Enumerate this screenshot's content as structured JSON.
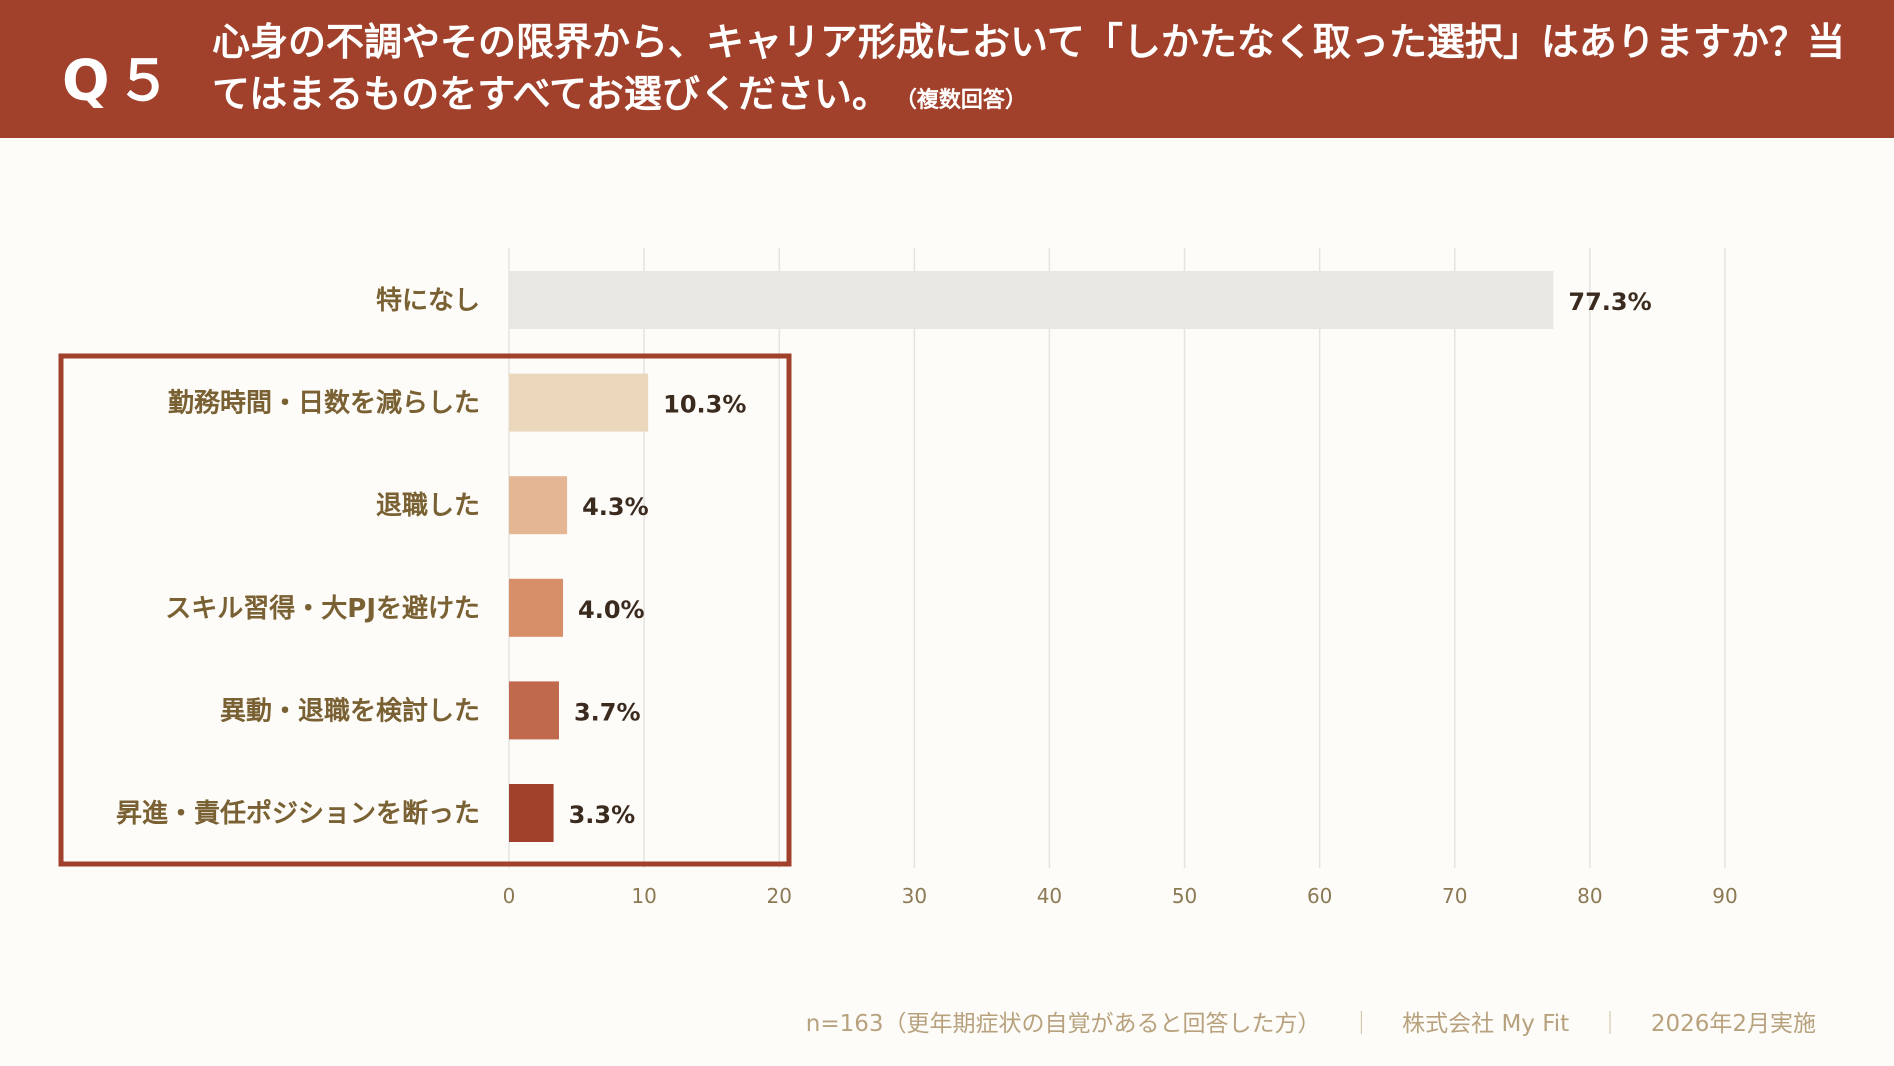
{
  "header": {
    "question_number": "Q５",
    "title": "心身の不調やその限界から、キャリア形成において「しかたなく取った選択」はありますか？当てはまるものをすべてお選びください。",
    "note": "（複数回答）"
  },
  "chart_data": {
    "type": "bar",
    "orientation": "horizontal",
    "title": "心身の不調やその限界から、キャリア形成において「しかたなく取った選択」はありますか？",
    "categories": [
      "特になし",
      "勤務時間・日数を減らした",
      "退職した",
      "スキル習得・大PJを避けた",
      "異動・退職を検討した",
      "昇進・責任ポジションを断った"
    ],
    "values": [
      77.3,
      10.3,
      4.3,
      4.0,
      3.7,
      3.3
    ],
    "value_labels": [
      "77.3%",
      "10.3%",
      "4.3%",
      "4.0%",
      "3.7%",
      "3.3%"
    ],
    "bar_colors": [
      "#e8e7e2",
      "#ead7bc",
      "#e5b693",
      "#d78f69",
      "#c0694c",
      "#a1402b"
    ],
    "xlim": [
      0,
      90
    ],
    "xticks": [
      0,
      10,
      20,
      30,
      40,
      50,
      60,
      70,
      80,
      90
    ],
    "xlabel": "",
    "ylabel": "",
    "grid": true,
    "highlight_box_color": "#a1402b"
  },
  "footer": {
    "sample": "n=163（更年期症状の自覚があると回答した方）",
    "company": "株式会社 My Fit",
    "date": "2026年2月実施",
    "separator": "｜"
  }
}
